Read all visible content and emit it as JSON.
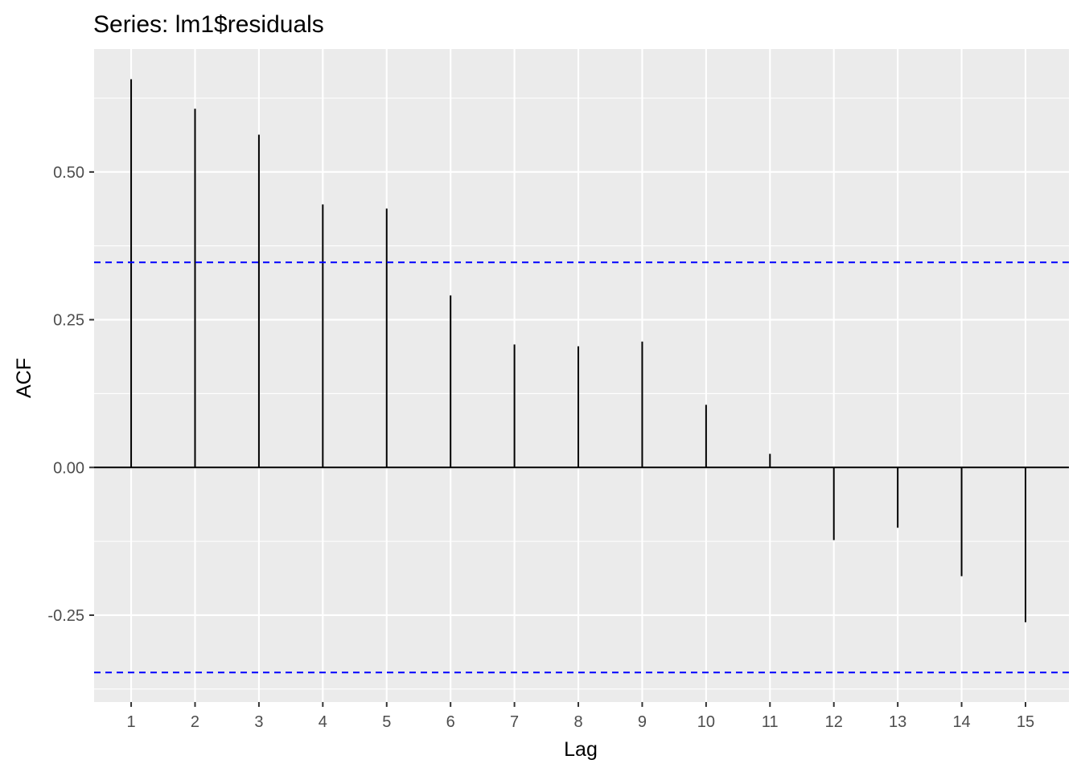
{
  "chart_data": {
    "type": "bar",
    "title": "Series: lm1$residuals",
    "xlabel": "Lag",
    "ylabel": "ACF",
    "x": [
      1,
      2,
      3,
      4,
      5,
      6,
      7,
      8,
      9,
      10,
      11,
      12,
      13,
      14,
      15
    ],
    "values": [
      0.657,
      0.607,
      0.563,
      0.445,
      0.438,
      0.291,
      0.208,
      0.205,
      0.213,
      0.106,
      0.023,
      -0.123,
      -0.102,
      -0.184,
      -0.262
    ],
    "x_ticks": [
      "1",
      "2",
      "3",
      "4",
      "5",
      "6",
      "7",
      "8",
      "9",
      "10",
      "11",
      "12",
      "13",
      "14",
      "15"
    ],
    "y_ticks": [
      {
        "value": -0.25,
        "label": "-0.25"
      },
      {
        "value": 0,
        "label": "0.00"
      },
      {
        "value": 0.25,
        "label": "0.25"
      },
      {
        "value": 0.5,
        "label": "0.50"
      }
    ],
    "xlim": [
      0.42,
      15.68
    ],
    "ylim": [
      -0.397,
      0.708
    ],
    "confidence_bounds": [
      0.347,
      -0.347
    ],
    "grid": true,
    "colors": {
      "panel_background": "#ebebeb",
      "grid": "#ffffff",
      "bars": "#000000",
      "zero_line": "#000000",
      "confidence_bounds": "#0000ff"
    }
  }
}
